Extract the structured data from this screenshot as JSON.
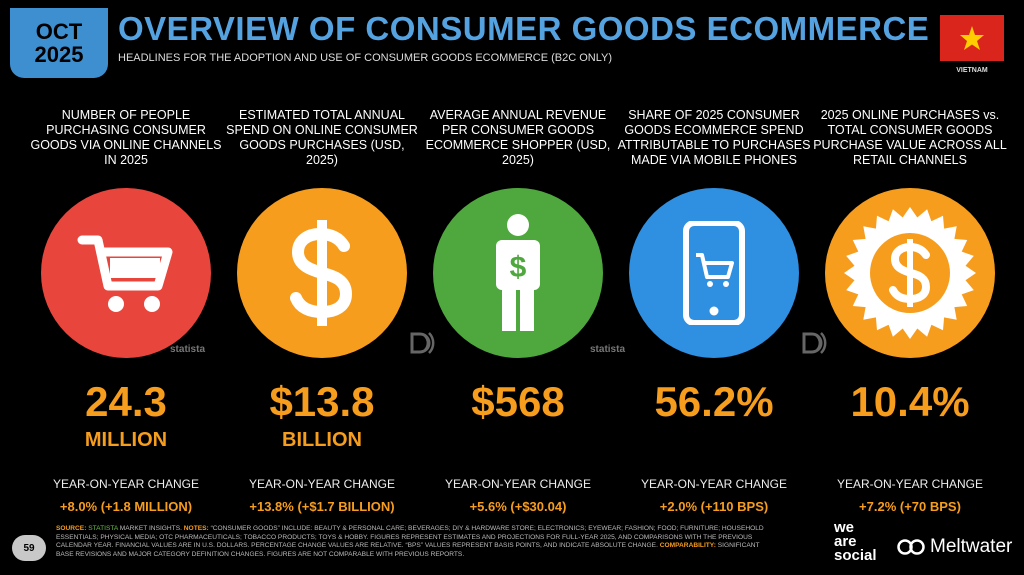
{
  "header": {
    "badge_month": "OCT",
    "badge_year": "2025",
    "title": "OVERVIEW OF CONSUMER GOODS ECOMMERCE",
    "subtitle": "HEADLINES FOR THE ADOPTION AND USE OF CONSUMER GOODS ECOMMERCE (B2C ONLY)",
    "country": "VIETNAM"
  },
  "colors": {
    "red": "#e8453c",
    "orange": "#f79d1e",
    "green": "#4fa83d",
    "blue": "#2f8fe0",
    "accent": "#55a2e1"
  },
  "columns": [
    {
      "heading": "NUMBER OF PEOPLE PURCHASING CONSUMER GOODS VIA ONLINE CHANNELS IN 2025",
      "icon": "shopping-cart-icon",
      "value": "24.3",
      "unit": "MILLION",
      "yoy_label": "YEAR-ON-YEAR CHANGE",
      "yoy_value": "+8.0% (+1.8 MILLION)"
    },
    {
      "heading": "ESTIMATED TOTAL ANNUAL SPEND ON ONLINE CONSUMER GOODS PURCHASES (USD, 2025)",
      "icon": "dollar-icon",
      "value": "$13.8",
      "unit": "BILLION",
      "yoy_label": "YEAR-ON-YEAR CHANGE",
      "yoy_value": "+13.8% (+$1.7 BILLION)"
    },
    {
      "heading": "AVERAGE ANNUAL REVENUE PER CONSUMER GOODS ECOMMERCE SHOPPER (USD, 2025)",
      "icon": "person-dollar-icon",
      "value": "$568",
      "unit": "",
      "yoy_label": "YEAR-ON-YEAR CHANGE",
      "yoy_value": "+5.6% (+$30.04)"
    },
    {
      "heading": "SHARE OF 2025 CONSUMER GOODS ECOMMERCE SPEND ATTRIBUTABLE TO PURCHASES MADE VIA MOBILE PHONES",
      "icon": "mobile-cart-icon",
      "value": "56.2%",
      "unit": "",
      "yoy_label": "YEAR-ON-YEAR CHANGE",
      "yoy_value": "+2.0% (+110 BPS)"
    },
    {
      "heading": "2025 ONLINE PURCHASES vs. TOTAL CONSUMER GOODS PURCHASE VALUE ACROSS ALL RETAIL CHANNELS",
      "icon": "dollar-badge-icon",
      "value": "10.4%",
      "unit": "",
      "yoy_label": "YEAR-ON-YEAR CHANGE",
      "yoy_value": "+7.2% (+70 BPS)"
    }
  ],
  "source_marks": [
    "statista",
    "statista"
  ],
  "footer": {
    "source_label": "SOURCE:",
    "source_name": "STATISTA",
    "source_rest": "MARKET INSIGHTS.",
    "notes_label": "NOTES:",
    "notes_text": "“CONSUMER GOODS” INCLUDE: BEAUTY & PERSONAL CARE; BEVERAGES; DIY & HARDWARE STORE; ELECTRONICS; EYEWEAR; FASHION; FOOD; FURNITURE; HOUSEHOLD ESSENTIALS; PHYSICAL MEDIA; OTC PHARMACEUTICALS; TOBACCO PRODUCTS; TOYS & HOBBY. FIGURES REPRESENT ESTIMATES AND PROJECTIONS FOR FULL-YEAR 2025, AND COMPARISONS WITH THE PREVIOUS CALENDAR YEAR. FINANCIAL VALUES ARE IN U.S. DOLLARS. PERCENTAGE CHANGE VALUES ARE RELATIVE. “BPS” VALUES REPRESENT BASIS POINTS, AND INDICATE ABSOLUTE CHANGE.",
    "comparability_label": "COMPARABILITY:",
    "comparability_text": "SIGNIFICANT BASE REVISIONS AND MAJOR CATEGORY DEFINITION CHANGES. FIGURES ARE NOT COMPARABLE WITH PREVIOUS REPORTS.",
    "page": "59"
  },
  "brands": {
    "we": "we",
    "are": "are",
    "social": "social",
    "meltwater": "Meltwater"
  }
}
